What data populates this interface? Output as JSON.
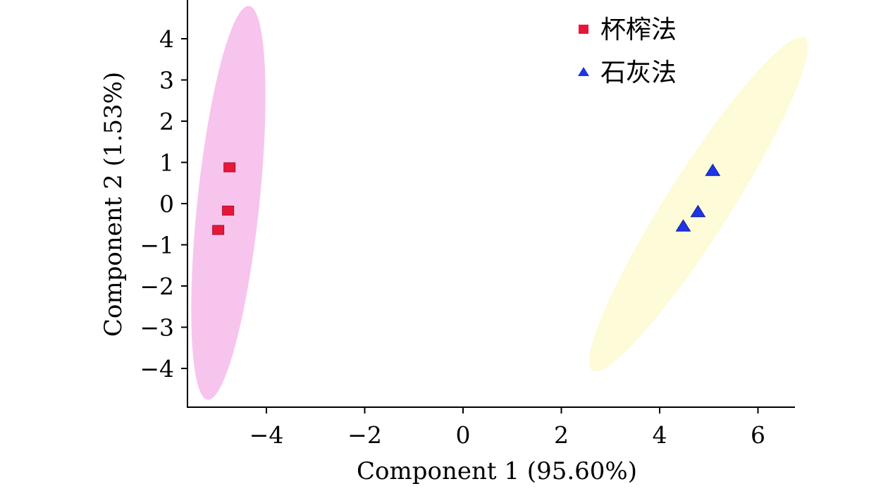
{
  "chart_data": {
    "type": "scatter",
    "xlabel": "Component 1 (95.60%)",
    "ylabel": "Component 2 (1.53%)",
    "xlim": [
      -5.7,
      6.7
    ],
    "ylim": [
      -4.9,
      5.0
    ],
    "xticks": [
      -4,
      -2,
      0,
      2,
      4,
      6
    ],
    "xtick_labels": [
      "−4",
      "−2",
      "0",
      "2",
      "4",
      "6"
    ],
    "yticks": [
      4,
      3,
      2,
      1,
      0,
      -1,
      -2,
      -3,
      -4
    ],
    "ytick_labels": [
      "4",
      "3",
      "2",
      "1",
      "0",
      "−1",
      "−2",
      "−3",
      "−4"
    ],
    "legend_position": "top-right",
    "series": [
      {
        "name": "杯榨法",
        "marker": "square",
        "color": "#e8173a",
        "ellipse_color": "#f7c4ee",
        "points": [
          {
            "x": -4.75,
            "y": 0.88
          },
          {
            "x": -4.78,
            "y": -0.17
          },
          {
            "x": -4.98,
            "y": -0.64
          }
        ]
      },
      {
        "name": "石灰法",
        "marker": "triangle",
        "color": "#1e34e6",
        "ellipse_color": "#fdfbd8",
        "points": [
          {
            "x": 5.08,
            "y": 0.8
          },
          {
            "x": 4.78,
            "y": -0.2
          },
          {
            "x": 4.48,
            "y": -0.55
          }
        ]
      }
    ]
  }
}
